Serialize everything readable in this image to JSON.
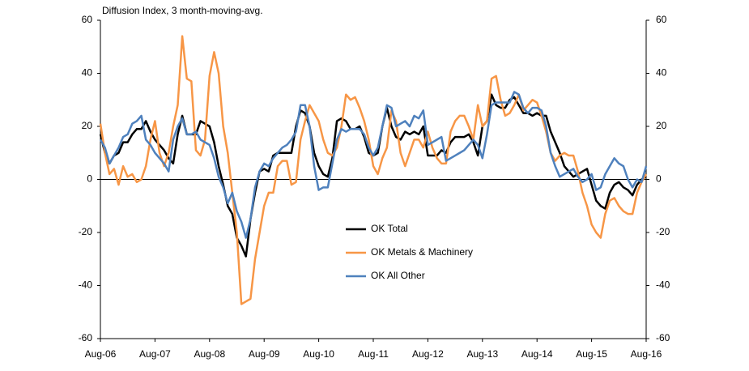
{
  "chart_data": {
    "type": "line",
    "y_label": "Diffusion Index, 3 month-moving-avg.",
    "categories": [
      "Aug-06",
      null,
      null,
      null,
      null,
      null,
      null,
      null,
      null,
      null,
      null,
      null,
      "Aug-07",
      null,
      null,
      null,
      null,
      null,
      null,
      null,
      null,
      null,
      null,
      null,
      "Aug-08",
      null,
      null,
      null,
      null,
      null,
      null,
      null,
      null,
      null,
      null,
      null,
      "Aug-09",
      null,
      null,
      null,
      null,
      null,
      null,
      null,
      null,
      null,
      null,
      null,
      "Aug-10",
      null,
      null,
      null,
      null,
      null,
      null,
      null,
      null,
      null,
      null,
      null,
      "Aug-11",
      null,
      null,
      null,
      null,
      null,
      null,
      null,
      null,
      null,
      null,
      null,
      "Aug-12",
      null,
      null,
      null,
      null,
      null,
      null,
      null,
      null,
      null,
      null,
      null,
      "Aug-13",
      null,
      null,
      null,
      null,
      null,
      null,
      null,
      null,
      null,
      null,
      null,
      "Aug-14",
      null,
      null,
      null,
      null,
      null,
      null,
      null,
      null,
      null,
      null,
      null,
      "Aug-15",
      null,
      null,
      null,
      null,
      null,
      null,
      null,
      null,
      null,
      null,
      null,
      "Aug-16"
    ],
    "series": [
      {
        "name": "OK Total",
        "color": "#000000",
        "values": [
          17,
          10,
          6,
          9,
          10,
          14,
          14,
          17,
          19,
          19,
          22,
          18,
          15,
          13,
          11,
          8,
          6,
          17,
          24,
          17,
          17,
          17,
          22,
          21,
          20,
          14,
          5,
          -2,
          -10,
          -13,
          -22,
          -25,
          -29,
          -15,
          -5,
          3,
          4,
          3,
          9,
          10,
          10,
          10,
          10,
          20,
          26,
          25,
          20,
          10,
          5,
          2,
          1,
          8,
          22,
          23,
          22,
          19,
          19,
          20,
          16,
          10,
          9,
          10,
          20,
          27,
          20,
          16,
          15,
          18,
          17,
          18,
          17,
          20,
          9,
          9,
          9,
          11,
          10,
          14,
          16,
          16,
          16,
          17,
          14,
          9,
          20,
          22,
          32,
          28,
          27,
          27,
          30,
          31,
          28,
          25,
          25,
          24,
          25,
          24,
          24,
          18,
          14,
          10,
          5,
          3,
          1,
          2,
          3,
          4,
          -2,
          -8,
          -10,
          -11,
          -5,
          -2,
          -1,
          -3,
          -4,
          -6,
          -2,
          0,
          1
        ]
      },
      {
        "name": "OK Metals & Machinery",
        "color": "#f79646",
        "values": [
          21,
          10,
          2,
          4,
          -2,
          5,
          1,
          2,
          -1,
          0,
          5,
          15,
          22,
          10,
          5,
          10,
          20,
          28,
          54,
          38,
          37,
          11,
          9,
          15,
          39,
          48,
          40,
          20,
          10,
          -5,
          -20,
          -47,
          -46,
          -45,
          -30,
          -20,
          -10,
          -5,
          -5,
          5,
          7,
          7,
          -2,
          -1,
          15,
          22,
          28,
          25,
          22,
          15,
          10,
          9,
          12,
          20,
          32,
          30,
          31,
          27,
          22,
          15,
          5,
          2,
          8,
          12,
          26,
          22,
          10,
          5,
          10,
          15,
          15,
          12,
          18,
          12,
          8,
          6,
          6,
          18,
          22,
          24,
          24,
          20,
          15,
          28,
          20,
          22,
          38,
          39,
          30,
          24,
          25,
          28,
          32,
          26,
          28,
          30,
          29,
          24,
          18,
          10,
          7,
          9,
          10,
          9,
          9,
          3,
          -5,
          -10,
          -17,
          -20,
          -22,
          -13,
          -8,
          -7,
          -10,
          -12,
          -13,
          -13,
          -5,
          -1,
          2
        ]
      },
      {
        "name": "OK All Other",
        "color": "#4f81bd",
        "values": [
          15,
          12,
          6,
          9,
          12,
          16,
          17,
          21,
          22,
          24,
          15,
          13,
          10,
          8,
          6,
          3,
          15,
          20,
          23,
          17,
          17,
          18,
          15,
          14,
          13,
          8,
          1,
          -3,
          -9,
          -5,
          -12,
          -16,
          -22,
          -15,
          -3,
          3,
          6,
          5,
          8,
          10,
          12,
          13,
          15,
          18,
          28,
          28,
          20,
          5,
          -4,
          -3,
          -3,
          6,
          15,
          19,
          18,
          19,
          19,
          19,
          17,
          12,
          9,
          12,
          20,
          28,
          27,
          20,
          21,
          22,
          20,
          24,
          23,
          26,
          13,
          14,
          15,
          16,
          7,
          8,
          9,
          10,
          11,
          13,
          15,
          13,
          8,
          17,
          28,
          29,
          29,
          29,
          29,
          33,
          32,
          27,
          25,
          27,
          27,
          26,
          20,
          10,
          5,
          1,
          2,
          3,
          4,
          1,
          -1,
          0,
          2,
          -4,
          -3,
          2,
          5,
          8,
          6,
          5,
          0,
          -3,
          0,
          -1,
          5
        ]
      }
    ],
    "ylim": [
      -60,
      60
    ],
    "yticks": [
      -60,
      -40,
      -20,
      0,
      20,
      40,
      60
    ],
    "y2lim": [
      -60,
      60
    ],
    "y2ticks": [
      -60,
      -40,
      -20,
      0,
      20,
      40,
      60
    ],
    "grid": false
  }
}
